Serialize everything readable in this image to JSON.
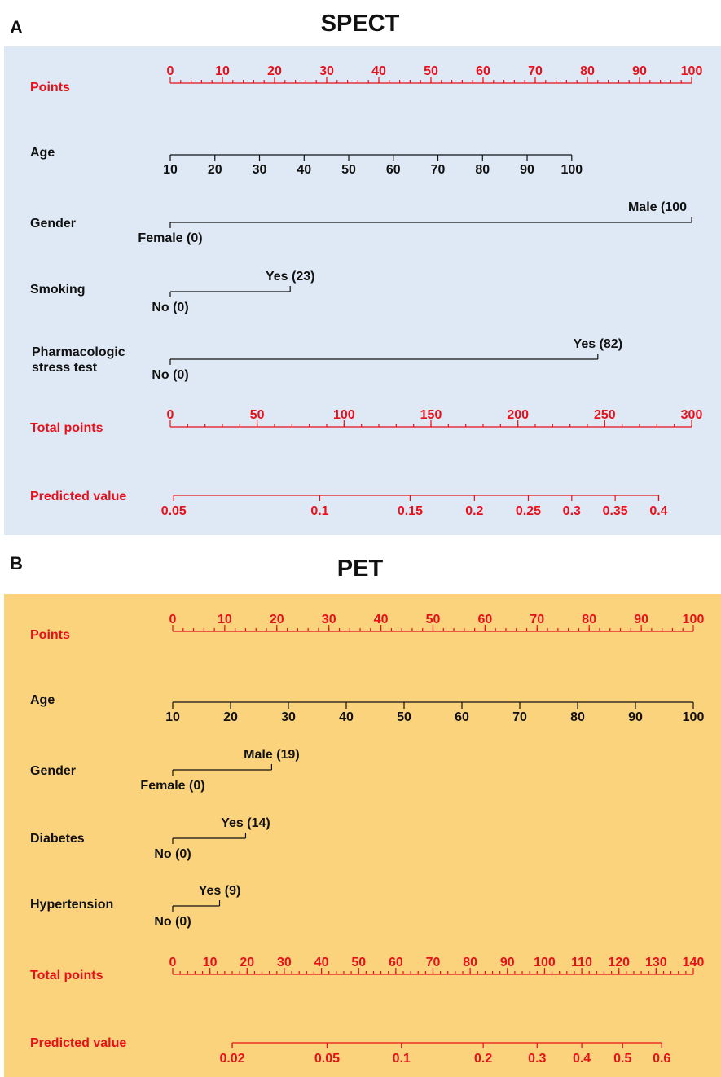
{
  "colors": {
    "spect_background": "#dfe9f5",
    "pet_background": "#fbd37d",
    "scale_red": "#e8101a",
    "label_black": "#111111"
  },
  "chart_data": [
    {
      "type": "nomogram",
      "panel_label": "A",
      "title": "SPECT",
      "rows": [
        {
          "label": "Points",
          "kind": "scale",
          "ticks": [
            "0",
            "10",
            "20",
            "30",
            "40",
            "50",
            "60",
            "70",
            "80",
            "90",
            "100"
          ],
          "range": [
            0,
            100
          ],
          "minor_ticks": 50
        },
        {
          "label": "Age",
          "kind": "scale",
          "ticks": [
            "10",
            "20",
            "30",
            "40",
            "50",
            "60",
            "70",
            "80",
            "90",
            "100"
          ],
          "range": [
            10,
            100
          ],
          "points_range": [
            0,
            77
          ]
        },
        {
          "label": "Gender",
          "kind": "binary",
          "low": {
            "label": "Female (0)",
            "points": 0
          },
          "high": {
            "label": "Male (100",
            "points": 100
          }
        },
        {
          "label": "Smoking",
          "kind": "binary",
          "low": {
            "label": "No (0)",
            "points": 0
          },
          "high": {
            "label": "Yes (23)",
            "points": 23
          }
        },
        {
          "label": [
            "Pharmacologic",
            "stress test"
          ],
          "kind": "binary",
          "low": {
            "label": "No (0)",
            "points": 0
          },
          "high": {
            "label": "Yes (82)",
            "points": 82
          }
        },
        {
          "label": "Total points",
          "kind": "scale",
          "ticks": [
            "0",
            "50",
            "100",
            "150",
            "200",
            "250",
            "300"
          ],
          "range": [
            0,
            300
          ],
          "minor_ticks": 30
        },
        {
          "label": "Predicted value",
          "kind": "probability",
          "ticks": [
            "0.05",
            "0.1",
            "0.15",
            "0.2",
            "0.25",
            "0.3",
            "0.35",
            "0.4"
          ],
          "tick_total_points": [
            2,
            86,
            138,
            175,
            206,
            231,
            256,
            281
          ],
          "line_total_points": [
            2,
            281
          ]
        }
      ]
    },
    {
      "type": "nomogram",
      "panel_label": "B",
      "title": "PET",
      "rows": [
        {
          "label": "Points",
          "kind": "scale",
          "ticks": [
            "0",
            "10",
            "20",
            "30",
            "40",
            "50",
            "60",
            "70",
            "80",
            "90",
            "100"
          ],
          "range": [
            0,
            100
          ],
          "minor_ticks": 50
        },
        {
          "label": "Age",
          "kind": "scale",
          "ticks": [
            "10",
            "20",
            "30",
            "40",
            "50",
            "60",
            "70",
            "80",
            "90",
            "100"
          ],
          "range": [
            10,
            100
          ],
          "points_range": [
            0,
            100
          ]
        },
        {
          "label": "Gender",
          "kind": "binary",
          "low": {
            "label": "Female (0)",
            "points": 0
          },
          "high": {
            "label": "Male (19)",
            "points": 19
          }
        },
        {
          "label": "Diabetes",
          "kind": "binary",
          "low": {
            "label": "No (0)",
            "points": 0
          },
          "high": {
            "label": "Yes (14)",
            "points": 14
          }
        },
        {
          "label": "Hypertension",
          "kind": "binary",
          "low": {
            "label": "No (0)",
            "points": 0
          },
          "high": {
            "label": "Yes (9)",
            "points": 9
          }
        },
        {
          "label": "Total points",
          "kind": "scale",
          "ticks": [
            "0",
            "10",
            "20",
            "30",
            "40",
            "50",
            "60",
            "70",
            "80",
            "90",
            "100",
            "110",
            "120",
            "130",
            "140"
          ],
          "range": [
            0,
            140
          ],
          "minor_ticks": 70
        },
        {
          "label": "Predicted value",
          "kind": "probability",
          "ticks": [
            "0.02",
            "0.05",
            "0.1",
            "0.2",
            "0.3",
            "0.4",
            "0.5",
            "0.6"
          ],
          "tick_total_points": [
            16,
            41.5,
            61.5,
            83.5,
            98,
            110,
            121,
            131.5
          ],
          "line_total_points": [
            16,
            131.5
          ]
        }
      ]
    }
  ]
}
